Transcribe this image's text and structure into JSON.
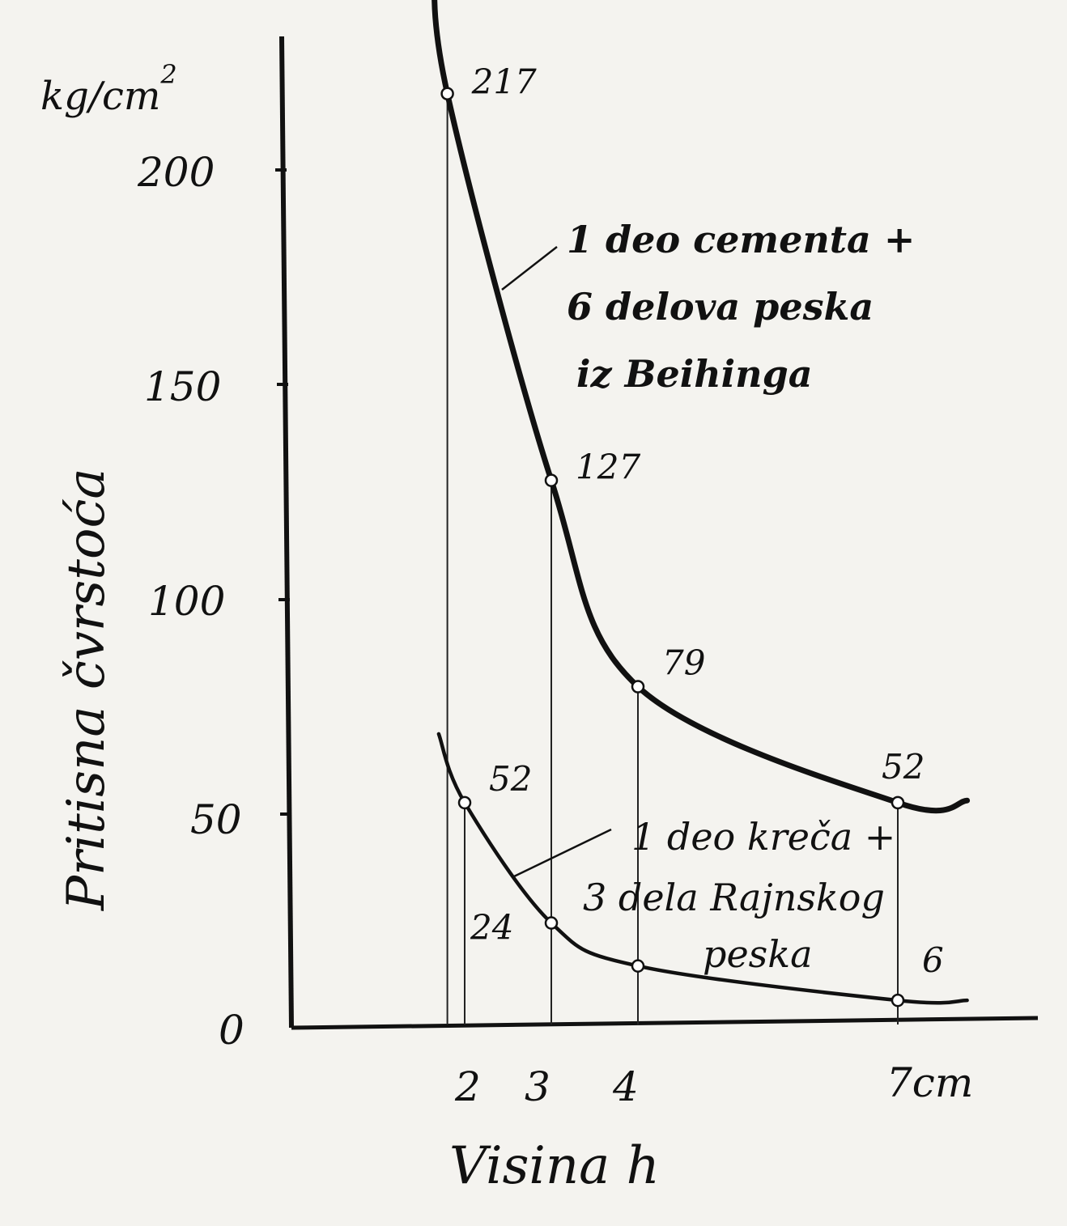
{
  "chart_data": {
    "type": "line",
    "xlabel": "Visina h",
    "ylabel": "Pritisna čvrstoća",
    "y_unit": "kg/cm",
    "y_unit_exp": "2",
    "x_unit": "cm",
    "xlim": [
      0,
      8.5
    ],
    "ylim": [
      0,
      230
    ],
    "x_ticks": [
      "2",
      "3",
      "4",
      "7cm"
    ],
    "y_ticks": [
      "0",
      "50",
      "100",
      "150",
      "200"
    ],
    "series": [
      {
        "name": "1 deo cementa + 6 delova peska iz Beihinga",
        "legend_lines": [
          "1 deo cementa +",
          "6 delova peska",
          "iz Beihinga"
        ],
        "x": [
          1.8,
          3.0,
          4.0,
          7.0
        ],
        "values": [
          217,
          127,
          79,
          52
        ],
        "labels": [
          "217",
          "127",
          "79",
          "52"
        ]
      },
      {
        "name": "1 deo kreča + 3 dela Rajnskog peska",
        "legend_lines": [
          "1 deo kreča +",
          "3 dela Rajnskog",
          "peska"
        ],
        "x": [
          2.0,
          3.0,
          4.0,
          7.0
        ],
        "values": [
          52,
          24,
          14,
          6
        ],
        "labels": [
          "52",
          "24",
          "",
          "6"
        ]
      }
    ],
    "grid": false,
    "legend_position": "annotations beside curves"
  }
}
